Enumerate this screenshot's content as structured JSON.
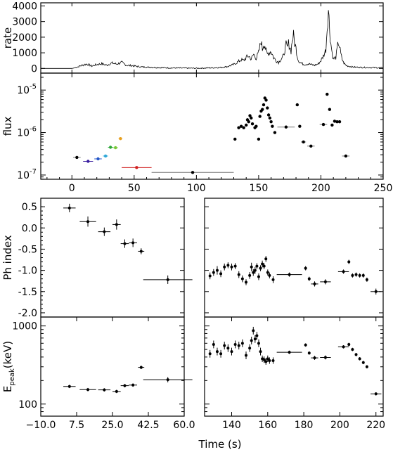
{
  "chart_data": [
    {
      "id": "rate",
      "type": "line",
      "ylabel": "rate",
      "xlim": [
        -25,
        250
      ],
      "ylim": [
        -300,
        4200
      ],
      "yticks": [
        0,
        1000,
        2000,
        3000,
        4000
      ],
      "series": [
        {
          "x": [
            -25,
            -15,
            -5,
            0,
            3,
            8,
            12,
            16,
            20,
            24,
            28,
            32,
            36,
            40,
            44,
            48,
            55,
            60,
            70,
            80,
            90,
            100,
            110,
            120,
            125,
            130,
            133,
            136,
            138,
            140,
            142,
            144,
            146,
            148,
            150,
            151,
            152,
            153,
            154,
            155,
            156,
            157,
            158,
            160,
            162,
            164,
            166,
            168,
            170,
            171,
            172,
            173,
            174,
            175,
            176,
            177,
            178,
            179,
            180,
            181,
            182,
            183,
            185,
            187,
            190,
            192,
            195,
            198,
            200,
            202,
            204,
            205,
            206,
            207,
            208,
            209,
            210,
            212,
            213,
            214,
            215,
            216,
            217,
            218,
            219,
            220,
            222,
            225,
            230,
            240,
            250
          ],
          "y": [
            0,
            0,
            0,
            0,
            50,
            200,
            280,
            150,
            250,
            300,
            200,
            350,
            280,
            380,
            200,
            180,
            100,
            80,
            50,
            30,
            20,
            10,
            30,
            60,
            120,
            250,
            400,
            550,
            500,
            700,
            800,
            600,
            900,
            650,
            1000,
            1400,
            1800,
            1200,
            1600,
            1500,
            1100,
            900,
            1000,
            1100,
            700,
            500,
            400,
            600,
            800,
            1200,
            1500,
            1300,
            1600,
            1400,
            1100,
            1800,
            2100,
            1600,
            1300,
            800,
            500,
            400,
            300,
            250,
            300,
            250,
            200,
            300,
            500,
            800,
            1200,
            2600,
            3800,
            2500,
            1600,
            1000,
            600,
            700,
            1200,
            1700,
            1400,
            900,
            600,
            400,
            300,
            200,
            150,
            100,
            70,
            50,
            40
          ]
        }
      ]
    },
    {
      "id": "flux",
      "type": "scatter",
      "ylabel": "flux",
      "log_y": true,
      "xlim": [
        -25,
        250
      ],
      "ylim_exp": [
        -7.1,
        -4.6
      ],
      "yticks": [
        {
          "v": -7,
          "label": "10^-7"
        },
        {
          "v": -6,
          "label": "10^-6"
        },
        {
          "v": -5,
          "label": "10^-5"
        }
      ],
      "xticks": [
        0,
        50,
        100,
        150,
        200,
        250
      ],
      "points": [
        {
          "x": 4,
          "y": 2.6e-07,
          "xerr": 3,
          "color": "#000000"
        },
        {
          "x": 13,
          "y": 2.1e-07,
          "xerr": 4,
          "color": "#3a1fa0"
        },
        {
          "x": 21,
          "y": 2.4e-07,
          "xerr": 3,
          "color": "#2456c8"
        },
        {
          "x": 27,
          "y": 2.8e-07,
          "xerr": 2,
          "color": "#2fa8d8"
        },
        {
          "x": 31,
          "y": 4.5e-07,
          "xerr": 2,
          "color": "#2fa83a"
        },
        {
          "x": 35,
          "y": 4.4e-07,
          "xerr": 2,
          "color": "#78c83a"
        },
        {
          "x": 39,
          "y": 7.2e-07,
          "xerr": 1.5,
          "color": "#e8a020"
        },
        {
          "x": 52,
          "y": 1.5e-07,
          "xerr": 12,
          "color": "#d02020"
        },
        {
          "x": 97,
          "y": 1.15e-07,
          "xerr": 33,
          "color": "#000000"
        },
        {
          "x": 131,
          "y": 7e-07,
          "color": "#000000"
        },
        {
          "x": 134,
          "y": 1.3e-06,
          "color": "#000000"
        },
        {
          "x": 136,
          "y": 1.4e-06,
          "color": "#000000"
        },
        {
          "x": 138,
          "y": 1.3e-06,
          "color": "#000000"
        },
        {
          "x": 140,
          "y": 1.5e-06,
          "color": "#000000"
        },
        {
          "x": 141,
          "y": 2e-06,
          "color": "#000000"
        },
        {
          "x": 142,
          "y": 1.8e-06,
          "color": "#000000"
        },
        {
          "x": 143,
          "y": 2.5e-06,
          "color": "#000000"
        },
        {
          "x": 144,
          "y": 2.2e-06,
          "color": "#000000"
        },
        {
          "x": 145,
          "y": 1.6e-06,
          "color": "#000000"
        },
        {
          "x": 147,
          "y": 1.3e-06,
          "color": "#000000"
        },
        {
          "x": 148,
          "y": 1.4e-06,
          "color": "#000000"
        },
        {
          "x": 150,
          "y": 7e-07,
          "color": "#000000"
        },
        {
          "x": 151,
          "y": 2.4e-06,
          "color": "#000000"
        },
        {
          "x": 152,
          "y": 3.2e-06,
          "color": "#000000"
        },
        {
          "x": 153,
          "y": 3.5e-06,
          "color": "#000000"
        },
        {
          "x": 154,
          "y": 4.5e-06,
          "color": "#000000"
        },
        {
          "x": 155,
          "y": 6.5e-06,
          "color": "#000000"
        },
        {
          "x": 156,
          "y": 5.8e-06,
          "color": "#000000"
        },
        {
          "x": 157,
          "y": 3.8e-06,
          "color": "#000000"
        },
        {
          "x": 158,
          "y": 2.6e-06,
          "color": "#000000"
        },
        {
          "x": 159,
          "y": 2.2e-06,
          "color": "#000000"
        },
        {
          "x": 160,
          "y": 1.8e-06,
          "color": "#000000"
        },
        {
          "x": 161,
          "y": 1.4e-06,
          "color": "#000000"
        },
        {
          "x": 163,
          "y": 1e-06,
          "color": "#000000"
        },
        {
          "x": 172,
          "y": 1.35e-06,
          "xerr": 7,
          "color": "#000000"
        },
        {
          "x": 181,
          "y": 4.5e-06,
          "color": "#000000"
        },
        {
          "x": 183,
          "y": 1.4e-06,
          "color": "#000000"
        },
        {
          "x": 186,
          "y": 6e-07,
          "xerr": 2,
          "color": "#000000"
        },
        {
          "x": 192,
          "y": 4.8e-07,
          "xerr": 3,
          "color": "#000000"
        },
        {
          "x": 202,
          "y": 1.55e-06,
          "xerr": 3,
          "color": "#000000"
        },
        {
          "x": 205,
          "y": 8e-06,
          "color": "#000000"
        },
        {
          "x": 207,
          "y": 3.5e-06,
          "color": "#000000"
        },
        {
          "x": 209,
          "y": 1.5e-06,
          "color": "#000000"
        },
        {
          "x": 211,
          "y": 1.85e-06,
          "color": "#000000"
        },
        {
          "x": 213,
          "y": 1.8e-06,
          "color": "#000000"
        },
        {
          "x": 215,
          "y": 1.8e-06,
          "color": "#000000"
        },
        {
          "x": 220,
          "y": 2.8e-07,
          "xerr": 3,
          "color": "#000000"
        }
      ]
    },
    {
      "id": "phindex-early",
      "type": "scatter",
      "ylabel": "Ph index",
      "xlim": [
        -10,
        60
      ],
      "ylim": [
        -2.1,
        0.7
      ],
      "yticks": [
        0.5,
        0.0,
        -0.5,
        -1.0,
        -1.5,
        -2.0
      ],
      "ytick_labels": [
        "0.5",
        "0.0",
        "-0.5",
        "-1.0",
        "-1.5",
        "-2.0"
      ],
      "points": [
        {
          "x": 4,
          "y": 0.47,
          "xerr": 3,
          "yerr": 0.1
        },
        {
          "x": 13,
          "y": 0.15,
          "xerr": 4,
          "yerr": 0.12
        },
        {
          "x": 21,
          "y": -0.09,
          "xerr": 3,
          "yerr": 0.1
        },
        {
          "x": 27,
          "y": 0.08,
          "xerr": 2,
          "yerr": 0.12
        },
        {
          "x": 31,
          "y": -0.37,
          "xerr": 2,
          "yerr": 0.1
        },
        {
          "x": 35,
          "y": -0.35,
          "xerr": 2,
          "yerr": 0.1
        },
        {
          "x": 39,
          "y": -0.55,
          "xerr": 1.5,
          "yerr": 0.07
        },
        {
          "x": 52,
          "y": -1.22,
          "xerr": 12,
          "yerr": 0.1
        }
      ]
    },
    {
      "id": "phindex-late",
      "type": "scatter",
      "xlim": [
        125,
        224
      ],
      "ylim": [
        -2.1,
        0.7
      ],
      "points": [
        {
          "x": 128,
          "y": -1.13,
          "yerr": 0.08
        },
        {
          "x": 130,
          "y": -1.05,
          "yerr": 0.08
        },
        {
          "x": 132,
          "y": -1.0,
          "yerr": 0.1
        },
        {
          "x": 134,
          "y": -1.08,
          "yerr": 0.08
        },
        {
          "x": 136,
          "y": -0.92,
          "yerr": 0.08
        },
        {
          "x": 138,
          "y": -0.88,
          "yerr": 0.07
        },
        {
          "x": 140,
          "y": -0.92,
          "yerr": 0.08
        },
        {
          "x": 142,
          "y": -0.9,
          "yerr": 0.07
        },
        {
          "x": 144,
          "y": -1.1,
          "yerr": 0.08
        },
        {
          "x": 146,
          "y": -1.2,
          "yerr": 0.08
        },
        {
          "x": 148,
          "y": -1.28,
          "yerr": 0.07
        },
        {
          "x": 150,
          "y": -1.12,
          "yerr": 0.08
        },
        {
          "x": 151,
          "y": -0.92,
          "yerr": 0.1
        },
        {
          "x": 152,
          "y": -1.05,
          "yerr": 0.08
        },
        {
          "x": 153,
          "y": -1.0,
          "yerr": 0.08
        },
        {
          "x": 154,
          "y": -0.9,
          "yerr": 0.07
        },
        {
          "x": 155,
          "y": -1.15,
          "yerr": 0.08
        },
        {
          "x": 156,
          "y": -0.95,
          "yerr": 0.07
        },
        {
          "x": 157,
          "y": -0.85,
          "yerr": 0.08
        },
        {
          "x": 158,
          "y": -0.9,
          "yerr": 0.07
        },
        {
          "x": 159,
          "y": -0.73,
          "yerr": 0.07
        },
        {
          "x": 160,
          "y": -1.05,
          "yerr": 0.07
        },
        {
          "x": 161,
          "y": -1.12,
          "yerr": 0.07
        },
        {
          "x": 163,
          "y": -1.22,
          "yerr": 0.08
        },
        {
          "x": 172,
          "y": -1.1,
          "xerr": 7,
          "yerr": 0.05
        },
        {
          "x": 181,
          "y": -0.95,
          "yerr": 0.05
        },
        {
          "x": 183,
          "y": -1.2,
          "yerr": 0.05
        },
        {
          "x": 186,
          "y": -1.32,
          "xerr": 2,
          "yerr": 0.06
        },
        {
          "x": 192,
          "y": -1.27,
          "xerr": 3,
          "yerr": 0.06
        },
        {
          "x": 202,
          "y": -1.03,
          "xerr": 3,
          "yerr": 0.05
        },
        {
          "x": 205,
          "y": -0.8,
          "yerr": 0.05
        },
        {
          "x": 207,
          "y": -1.12,
          "yerr": 0.05
        },
        {
          "x": 209,
          "y": -1.1,
          "yerr": 0.05
        },
        {
          "x": 211,
          "y": -1.12,
          "yerr": 0.05
        },
        {
          "x": 213,
          "y": -1.12,
          "yerr": 0.05
        },
        {
          "x": 215,
          "y": -1.22,
          "yerr": 0.05
        },
        {
          "x": 220,
          "y": -1.5,
          "xerr": 3,
          "yerr": 0.07
        }
      ]
    },
    {
      "id": "epeak-early",
      "type": "scatter",
      "ylabel": "E_peak(keV)",
      "log_y": true,
      "xlim": [
        -10,
        60
      ],
      "ylim": [
        70,
        1300
      ],
      "yticks": [
        100,
        1000
      ],
      "xticks": [
        -10.0,
        7.5,
        25.0,
        42.5,
        60.0
      ],
      "xtick_labels": [
        "−10.0",
        "7.5",
        "25.0",
        "42.5",
        "60.0"
      ],
      "points": [
        {
          "x": 4,
          "y": 168,
          "xerr": 3,
          "yerr_frac": 0.05
        },
        {
          "x": 13,
          "y": 153,
          "xerr": 4,
          "yerr_frac": 0.05
        },
        {
          "x": 21,
          "y": 152,
          "xerr": 3,
          "yerr_frac": 0.05
        },
        {
          "x": 27,
          "y": 145,
          "xerr": 2,
          "yerr_frac": 0.05
        },
        {
          "x": 31,
          "y": 172,
          "xerr": 2,
          "yerr_frac": 0.05
        },
        {
          "x": 35,
          "y": 175,
          "xerr": 2,
          "yerr_frac": 0.05
        },
        {
          "x": 39,
          "y": 295,
          "xerr": 1.5,
          "yerr_frac": 0.05
        },
        {
          "x": 52,
          "y": 205,
          "xerr": 12,
          "yerr_frac": 0.08
        }
      ]
    },
    {
      "id": "epeak-late",
      "type": "scatter",
      "log_y": true,
      "xlim": [
        125,
        224
      ],
      "ylim": [
        70,
        1300
      ],
      "xticks": [
        140,
        160,
        180,
        200,
        220
      ],
      "points": [
        {
          "x": 128,
          "y": 440,
          "yerr_frac": 0.12
        },
        {
          "x": 130,
          "y": 580,
          "yerr_frac": 0.12
        },
        {
          "x": 132,
          "y": 470,
          "yerr_frac": 0.12
        },
        {
          "x": 134,
          "y": 440,
          "yerr_frac": 0.12
        },
        {
          "x": 136,
          "y": 560,
          "yerr_frac": 0.12
        },
        {
          "x": 138,
          "y": 520,
          "yerr_frac": 0.12
        },
        {
          "x": 140,
          "y": 470,
          "yerr_frac": 0.12
        },
        {
          "x": 142,
          "y": 580,
          "yerr_frac": 0.12
        },
        {
          "x": 144,
          "y": 560,
          "yerr_frac": 0.12
        },
        {
          "x": 146,
          "y": 600,
          "yerr_frac": 0.12
        },
        {
          "x": 148,
          "y": 420,
          "yerr_frac": 0.12
        },
        {
          "x": 150,
          "y": 520,
          "yerr_frac": 0.12
        },
        {
          "x": 151,
          "y": 650,
          "yerr_frac": 0.12
        },
        {
          "x": 152,
          "y": 870,
          "yerr_frac": 0.12
        },
        {
          "x": 153,
          "y": 680,
          "yerr_frac": 0.12
        },
        {
          "x": 154,
          "y": 750,
          "yerr_frac": 0.12
        },
        {
          "x": 155,
          "y": 600,
          "yerr_frac": 0.12
        },
        {
          "x": 156,
          "y": 470,
          "yerr_frac": 0.12
        },
        {
          "x": 157,
          "y": 380,
          "yerr_frac": 0.1
        },
        {
          "x": 158,
          "y": 370,
          "yerr_frac": 0.1
        },
        {
          "x": 159,
          "y": 350,
          "yerr_frac": 0.1
        },
        {
          "x": 160,
          "y": 380,
          "yerr_frac": 0.1
        },
        {
          "x": 161,
          "y": 360,
          "yerr_frac": 0.1
        },
        {
          "x": 163,
          "y": 360,
          "yerr_frac": 0.1
        },
        {
          "x": 172,
          "y": 460,
          "xerr": 7,
          "yerr_frac": 0.05
        },
        {
          "x": 181,
          "y": 570,
          "yerr_frac": 0.05
        },
        {
          "x": 183,
          "y": 450,
          "yerr_frac": 0.05
        },
        {
          "x": 186,
          "y": 390,
          "xerr": 2,
          "yerr_frac": 0.06
        },
        {
          "x": 192,
          "y": 395,
          "xerr": 3,
          "yerr_frac": 0.06
        },
        {
          "x": 202,
          "y": 540,
          "xerr": 3,
          "yerr_frac": 0.05
        },
        {
          "x": 205,
          "y": 580,
          "yerr_frac": 0.05
        },
        {
          "x": 207,
          "y": 500,
          "yerr_frac": 0.05
        },
        {
          "x": 209,
          "y": 430,
          "yerr_frac": 0.05
        },
        {
          "x": 211,
          "y": 380,
          "yerr_frac": 0.05
        },
        {
          "x": 213,
          "y": 340,
          "yerr_frac": 0.05
        },
        {
          "x": 215,
          "y": 300,
          "yerr_frac": 0.05
        },
        {
          "x": 220,
          "y": 135,
          "xerr": 3,
          "yerr_frac": 0.05
        }
      ]
    }
  ],
  "xlabel": "Time (s)"
}
